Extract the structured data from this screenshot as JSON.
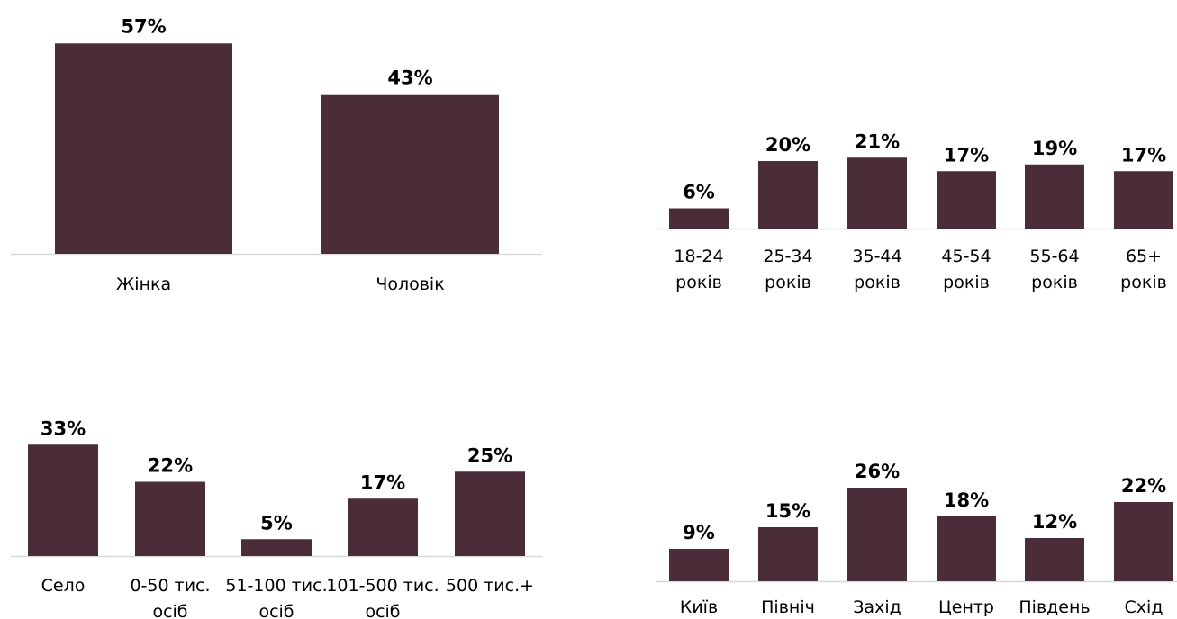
{
  "colors": {
    "bar": "#4a2d38",
    "axis": "#d9d9d9"
  },
  "chart_data": [
    {
      "type": "bar",
      "categories": [
        "Жінка",
        "Чоловік"
      ],
      "values": [
        57,
        43
      ],
      "labels": [
        "57%",
        "43%"
      ]
    },
    {
      "type": "bar",
      "categories": [
        "18-24 років",
        "25-34 років",
        "35-44 років",
        "45-54 років",
        "55-64 років",
        "65+ років"
      ],
      "values": [
        6,
        20,
        21,
        17,
        19,
        17
      ],
      "labels": [
        "6%",
        "20%",
        "21%",
        "17%",
        "19%",
        "17%"
      ]
    },
    {
      "type": "bar",
      "categories": [
        "Село",
        "0-50 тис. осіб",
        "51-100 тис. осіб",
        "101-500 тис. осіб",
        "500 тис.+"
      ],
      "values": [
        33,
        22,
        5,
        17,
        25
      ],
      "labels": [
        "33%",
        "22%",
        "5%",
        "17%",
        "25%"
      ]
    },
    {
      "type": "bar",
      "categories": [
        "Київ",
        "Північ",
        "Захід",
        "Центр",
        "Південь",
        "Схід"
      ],
      "values": [
        9,
        15,
        26,
        18,
        12,
        22
      ],
      "labels": [
        "9%",
        "15%",
        "26%",
        "18%",
        "12%",
        "22%"
      ]
    }
  ]
}
